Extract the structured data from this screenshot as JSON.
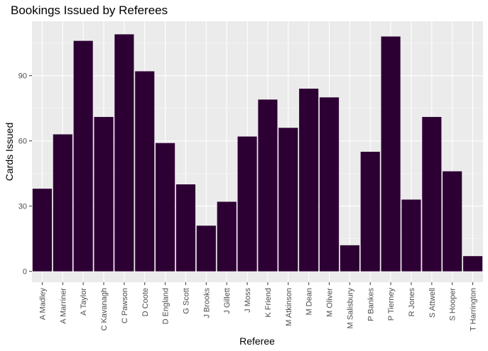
{
  "chart_data": {
    "type": "bar",
    "title": "Bookings Issued by Referees",
    "xlabel": "Referee",
    "ylabel": "Cards Issued",
    "categories": [
      "A Madley",
      "A Marriner",
      "A Taylor",
      "C Kavanagh",
      "C Pawson",
      "D Coote",
      "D England",
      "G Scott",
      "J Brooks",
      "J Gillett",
      "J Moss",
      "K Friend",
      "M Atkinson",
      "M Dean",
      "M Oliver",
      "M Salisbury",
      "P Bankes",
      "P Tierney",
      "R Jones",
      "S Attwell",
      "S Hooper",
      "T Harrington"
    ],
    "values": [
      38,
      63,
      106,
      71,
      109,
      92,
      59,
      40,
      21,
      32,
      62,
      79,
      66,
      84,
      80,
      12,
      55,
      108,
      33,
      71,
      46,
      7
    ],
    "yticks": [
      0,
      30,
      60,
      90
    ],
    "ylim": [
      -5,
      115
    ],
    "grid": true,
    "legend": "none",
    "colors": {
      "bar": "#2d0033",
      "panel": "#ebebeb",
      "grid_major": "#ffffff",
      "grid_minor": "#f5f5f5"
    }
  }
}
